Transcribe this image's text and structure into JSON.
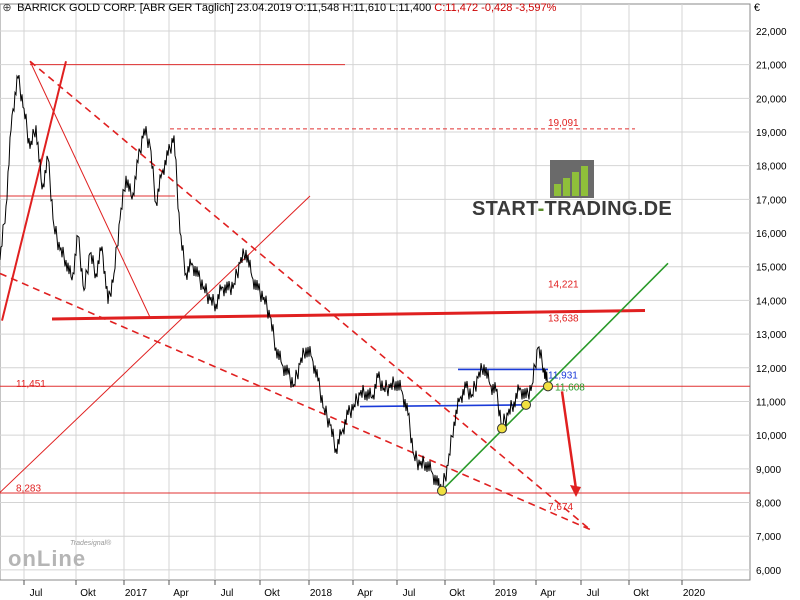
{
  "header": {
    "title": "BARRICK GOLD CORP. [ABR GER  Täglich] 23.04.2019",
    "ohlc": "O:11,548 H:11,610 L:11,400",
    "change": "C:11,472 -0,428 -3,597%"
  },
  "currency": "€",
  "logo": {
    "part1": "START",
    "part2": "-",
    "part3": "TRADING.DE"
  },
  "watermark": {
    "word": "onLine",
    "brand": "Tradesignal®"
  },
  "chart_data": {
    "type": "line",
    "y_ticks": [
      "6,000",
      "7,000",
      "8,000",
      "9,000",
      "10,000",
      "11,000",
      "12,000",
      "13,000",
      "14,000",
      "15,000",
      "16,000",
      "17,000",
      "18,000",
      "19,000",
      "20,000",
      "21,000",
      "22,000"
    ],
    "ylim": [
      5.7,
      22.8
    ],
    "x_labels": [
      "Jul",
      "Okt",
      "2017",
      "Apr",
      "Jul",
      "Okt",
      "2018",
      "Apr",
      "Jul",
      "Okt",
      "2019",
      "Apr",
      "Jul",
      "Okt",
      "2020"
    ],
    "price_series": [
      [
        0,
        15.2
      ],
      [
        6,
        16.8
      ],
      [
        12,
        19.5
      ],
      [
        18,
        20.6
      ],
      [
        24,
        19.7
      ],
      [
        30,
        18.5
      ],
      [
        36,
        19.2
      ],
      [
        42,
        17.3
      ],
      [
        48,
        18.2
      ],
      [
        54,
        16.2
      ],
      [
        60,
        15.5
      ],
      [
        66,
        15.2
      ],
      [
        72,
        14.6
      ],
      [
        78,
        15.9
      ],
      [
        84,
        14.3
      ],
      [
        90,
        15.4
      ],
      [
        96,
        14.8
      ],
      [
        102,
        15.6
      ],
      [
        108,
        13.9
      ],
      [
        114,
        14.8
      ],
      [
        120,
        16.4
      ],
      [
        126,
        17.7
      ],
      [
        132,
        17.0
      ],
      [
        138,
        18.1
      ],
      [
        144,
        19.1
      ],
      [
        150,
        18.6
      ],
      [
        156,
        16.9
      ],
      [
        162,
        17.8
      ],
      [
        168,
        18.3
      ],
      [
        174,
        18.9
      ],
      [
        180,
        16.0
      ],
      [
        186,
        14.8
      ],
      [
        192,
        15.1
      ],
      [
        198,
        14.7
      ],
      [
        204,
        14.4
      ],
      [
        210,
        14.0
      ],
      [
        216,
        13.9
      ],
      [
        222,
        14.4
      ],
      [
        228,
        14.3
      ],
      [
        234,
        14.5
      ],
      [
        240,
        15.1
      ],
      [
        246,
        15.5
      ],
      [
        252,
        14.7
      ],
      [
        258,
        14.3
      ],
      [
        264,
        14.1
      ],
      [
        270,
        13.5
      ],
      [
        276,
        12.6
      ],
      [
        282,
        12.1
      ],
      [
        288,
        11.8
      ],
      [
        294,
        11.5
      ],
      [
        300,
        12.1
      ],
      [
        306,
        12.6
      ],
      [
        312,
        12.3
      ],
      [
        318,
        11.6
      ],
      [
        324,
        10.8
      ],
      [
        330,
        10.3
      ],
      [
        336,
        9.6
      ],
      [
        342,
        10.1
      ],
      [
        348,
        10.6
      ],
      [
        354,
        10.9
      ],
      [
        360,
        11.2
      ],
      [
        366,
        11.3
      ],
      [
        372,
        11.1
      ],
      [
        378,
        11.7
      ],
      [
        384,
        11.4
      ],
      [
        390,
        11.4
      ],
      [
        396,
        11.6
      ],
      [
        402,
        11.3
      ],
      [
        408,
        10.6
      ],
      [
        414,
        9.4
      ],
      [
        420,
        9.1
      ],
      [
        426,
        9.2
      ],
      [
        432,
        8.9
      ],
      [
        438,
        8.5
      ],
      [
        442,
        8.4
      ],
      [
        448,
        9.1
      ],
      [
        454,
        10.4
      ],
      [
        460,
        11.1
      ],
      [
        466,
        11.4
      ],
      [
        472,
        11.2
      ],
      [
        478,
        11.7
      ],
      [
        484,
        12.1
      ],
      [
        490,
        11.5
      ],
      [
        496,
        11.3
      ],
      [
        502,
        10.3
      ],
      [
        508,
        10.6
      ],
      [
        514,
        11.0
      ],
      [
        520,
        11.4
      ],
      [
        526,
        11.1
      ],
      [
        532,
        11.5
      ],
      [
        538,
        12.6
      ],
      [
        544,
        12.0
      ],
      [
        548,
        11.472
      ]
    ],
    "horizontal_lines": [
      {
        "label": "21,000",
        "y": 21.0,
        "style": "solid"
      },
      {
        "label": "19,091",
        "y": 19.091,
        "style": "dashed"
      },
      {
        "label": "17,100",
        "y": 17.1,
        "style": "solid"
      },
      {
        "label": "11,451",
        "y": 11.451,
        "style": "solid"
      },
      {
        "label": "8,283",
        "y": 8.283,
        "style": "solid"
      }
    ],
    "level_labels": [
      {
        "text": "19,091",
        "y": 19.3
      },
      {
        "text": "14,221",
        "y": 14.5
      },
      {
        "text": "13,638",
        "y": 13.5
      },
      {
        "text": "11,451",
        "y": 11.55
      },
      {
        "text": "8,283",
        "y": 8.45
      },
      {
        "text": "7,674",
        "y": 7.9
      },
      {
        "text": "11,931",
        "y": 11.8
      },
      {
        "text": "11,608",
        "y": 11.45
      }
    ],
    "trendlines": [
      {
        "color": "red",
        "style": "dashed",
        "from": [
          30,
          21.1
        ],
        "to": [
          590,
          7.2
        ]
      },
      {
        "color": "red",
        "style": "dashed",
        "from": [
          0,
          14.8
        ],
        "to": [
          590,
          7.2
        ]
      },
      {
        "color": "red",
        "style": "thick",
        "from": [
          52,
          13.45
        ],
        "to": [
          645,
          13.7
        ]
      },
      {
        "color": "green",
        "style": "solid",
        "from": [
          440,
          8.3
        ],
        "to": [
          668,
          15.1
        ]
      },
      {
        "color": "blue",
        "style": "solid",
        "from": [
          458,
          11.95
        ],
        "to": [
          548,
          11.95
        ]
      },
      {
        "color": "blue",
        "style": "solid",
        "from": [
          360,
          10.85
        ],
        "to": [
          530,
          10.9
        ]
      }
    ],
    "forecast_arrow": {
      "from": [
        562,
        11.3
      ],
      "to": [
        576,
        8.4
      ]
    },
    "pivot_markers": [
      [
        442,
        8.35
      ],
      [
        502,
        10.2
      ],
      [
        526,
        10.9
      ],
      [
        548,
        11.45
      ]
    ],
    "grid": true,
    "legend": "none"
  }
}
